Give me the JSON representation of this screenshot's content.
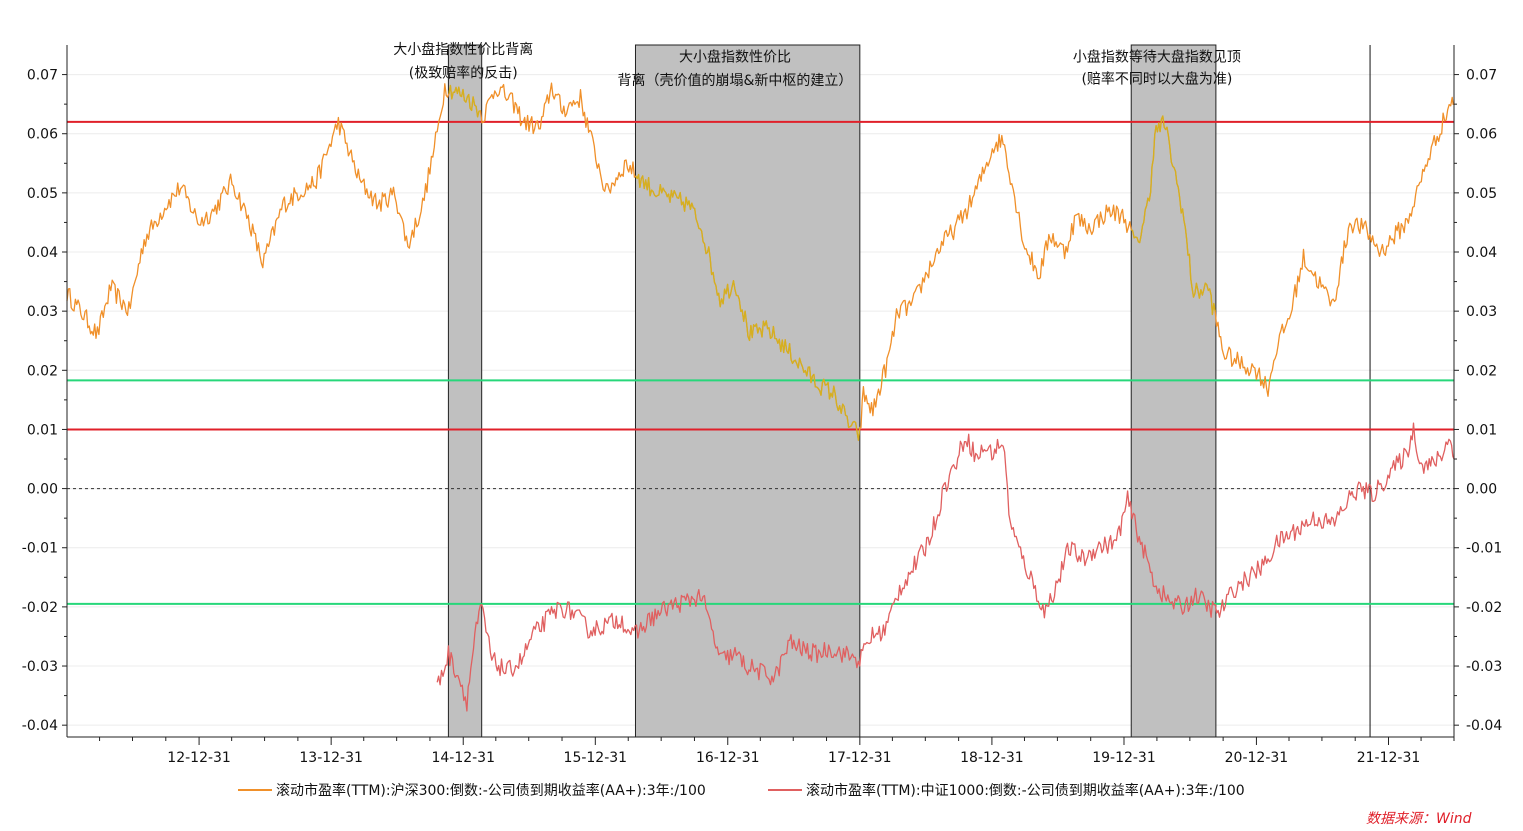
{
  "chart_data": {
    "type": "line",
    "x_tick_labels": [
      "12-12-31",
      "13-12-31",
      "14-12-31",
      "15-12-31",
      "16-12-31",
      "17-12-31",
      "18-12-31",
      "19-12-31",
      "20-12-31",
      "21-12-31"
    ],
    "x_range": [
      "2012-01-01",
      "2022-06-30"
    ],
    "ylim": [
      -0.042,
      0.075
    ],
    "y_ticks": [
      0.07,
      0.06,
      0.05,
      0.04,
      0.03,
      0.02,
      0.01,
      0.0,
      -0.01,
      -0.02,
      -0.03,
      -0.04
    ],
    "y_tick_labels": [
      "0.07",
      "0.06",
      "0.05",
      "0.04",
      "0.03",
      "0.02",
      "0.01",
      "0.00",
      "-0.01",
      "-0.02",
      "-0.03",
      "-0.04"
    ],
    "reference_lines": [
      {
        "value": 0.062,
        "color": "#e0202a"
      },
      {
        "value": 0.0183,
        "color": "#27d77a"
      },
      {
        "value": 0.01,
        "color": "#e0202a"
      },
      {
        "value": 0.0,
        "color": "#333333",
        "style": "dashed"
      },
      {
        "value": -0.0195,
        "color": "#27d77a"
      }
    ],
    "shaded_periods": [
      {
        "start": "2014-11-20",
        "end": "2015-02-20"
      },
      {
        "start": "2016-04-20",
        "end": "2017-12-31"
      },
      {
        "start": "2020-01-20",
        "end": "2020-09-10"
      }
    ],
    "vertical_markers": [
      "2021-11-10"
    ],
    "annotations": [
      {
        "lines": [
          "大小盘指数性价比背离",
          "(极致赔率的反击)"
        ],
        "x": "2014-12-31",
        "y": [
          0.0735,
          0.0695
        ]
      },
      {
        "lines": [
          "大小盘指数性价比",
          "背离（壳价值的崩塌&新中枢的建立）"
        ],
        "x": "2017-01-20",
        "y": [
          0.0722,
          0.0682
        ]
      },
      {
        "lines": [
          "小盘指数等待大盘指数见顶",
          "(赔率不同时以大盘为准)"
        ],
        "x": "2020-03-31",
        "y": [
          0.0722,
          0.0685
        ]
      }
    ],
    "series": [
      {
        "name": "滚动市盈率(TTM):沪深300:倒数:-公司债到期收益率(AA+):3年:/100",
        "color": "#f0902a",
        "shaded_color": "#d4b020",
        "points": [
          [
            "2012-01-01",
            0.033
          ],
          [
            "2012-02-20",
            0.029
          ],
          [
            "2012-03-25",
            0.026
          ],
          [
            "2012-05-01",
            0.034
          ],
          [
            "2012-06-20",
            0.03
          ],
          [
            "2012-08-01",
            0.042
          ],
          [
            "2012-10-01",
            0.048
          ],
          [
            "2012-11-10",
            0.051
          ],
          [
            "2012-12-31",
            0.045
          ],
          [
            "2013-02-10",
            0.047
          ],
          [
            "2013-04-01",
            0.052
          ],
          [
            "2013-05-20",
            0.045
          ],
          [
            "2013-06-25",
            0.038
          ],
          [
            "2013-08-20",
            0.048
          ],
          [
            "2013-10-01",
            0.05
          ],
          [
            "2013-11-20",
            0.052
          ],
          [
            "2014-01-20",
            0.062
          ],
          [
            "2014-03-20",
            0.052
          ],
          [
            "2014-05-10",
            0.048
          ],
          [
            "2014-06-25",
            0.05
          ],
          [
            "2014-07-31",
            0.041
          ],
          [
            "2014-09-10",
            0.048
          ],
          [
            "2014-10-20",
            0.06
          ],
          [
            "2014-11-10",
            0.068
          ],
          [
            "2015-01-15",
            0.066
          ],
          [
            "2015-02-25",
            0.063
          ],
          [
            "2015-04-01",
            0.068
          ],
          [
            "2015-05-20",
            0.065
          ],
          [
            "2015-06-15",
            0.062
          ],
          [
            "2015-08-01",
            0.061
          ],
          [
            "2015-09-01",
            0.068
          ],
          [
            "2015-10-01",
            0.064
          ],
          [
            "2015-11-20",
            0.066
          ],
          [
            "2015-12-20",
            0.059
          ],
          [
            "2016-01-30",
            0.05
          ],
          [
            "2016-03-25",
            0.055
          ],
          [
            "2016-05-10",
            0.052
          ],
          [
            "2016-06-20",
            0.05
          ],
          [
            "2016-08-01",
            0.049
          ],
          [
            "2016-09-15",
            0.048
          ],
          [
            "2016-10-20",
            0.044
          ],
          [
            "2016-12-10",
            0.032
          ],
          [
            "2017-01-20",
            0.035
          ],
          [
            "2017-03-01",
            0.026
          ],
          [
            "2017-04-20",
            0.027
          ],
          [
            "2017-06-20",
            0.023
          ],
          [
            "2017-08-30",
            0.018
          ],
          [
            "2017-10-20",
            0.016
          ],
          [
            "2017-11-30",
            0.011
          ],
          [
            "2017-12-31",
            0.009
          ],
          [
            "2018-01-10",
            0.016
          ],
          [
            "2018-02-05",
            0.013
          ],
          [
            "2018-03-20",
            0.022
          ],
          [
            "2018-04-15",
            0.03
          ],
          [
            "2018-05-25",
            0.031
          ],
          [
            "2018-07-01",
            0.036
          ],
          [
            "2018-08-10",
            0.041
          ],
          [
            "2018-09-20",
            0.044
          ],
          [
            "2018-10-31",
            0.048
          ],
          [
            "2018-12-05",
            0.053
          ],
          [
            "2019-01-05",
            0.058
          ],
          [
            "2019-01-31",
            0.059
          ],
          [
            "2019-02-20",
            0.053
          ],
          [
            "2019-04-01",
            0.041
          ],
          [
            "2019-05-10",
            0.036
          ],
          [
            "2019-06-10",
            0.043
          ],
          [
            "2019-07-20",
            0.04
          ],
          [
            "2019-08-20",
            0.046
          ],
          [
            "2019-09-25",
            0.044
          ],
          [
            "2019-11-20",
            0.047
          ],
          [
            "2019-12-31",
            0.046
          ],
          [
            "2020-02-05",
            0.041
          ],
          [
            "2020-03-10",
            0.049
          ],
          [
            "2020-03-25",
            0.06
          ],
          [
            "2020-04-20",
            0.062
          ],
          [
            "2020-06-10",
            0.047
          ],
          [
            "2020-07-10",
            0.033
          ],
          [
            "2020-08-20",
            0.034
          ],
          [
            "2020-10-01",
            0.023
          ],
          [
            "2020-11-20",
            0.021
          ],
          [
            "2020-12-31",
            0.02
          ],
          [
            "2021-02-01",
            0.017
          ],
          [
            "2021-02-25",
            0.024
          ],
          [
            "2021-04-01",
            0.029
          ],
          [
            "2021-05-10",
            0.039
          ],
          [
            "2021-06-20",
            0.035
          ],
          [
            "2021-07-31",
            0.031
          ],
          [
            "2021-09-15",
            0.045
          ],
          [
            "2021-10-25",
            0.044
          ],
          [
            "2021-12-10",
            0.04
          ],
          [
            "2022-01-20",
            0.043
          ],
          [
            "2022-02-20",
            0.045
          ],
          [
            "2022-03-20",
            0.05
          ],
          [
            "2022-04-20",
            0.056
          ],
          [
            "2022-05-31",
            0.062
          ],
          [
            "2022-06-25",
            0.066
          ],
          [
            "2022-06-30",
            0.065
          ]
        ]
      },
      {
        "name": "滚动市盈率(TTM):中证1000:倒数:-公司债到期收益率(AA+):3年:/100",
        "color": "#e06060",
        "points": [
          [
            "2014-10-20",
            -0.0335
          ],
          [
            "2014-11-05",
            -0.031
          ],
          [
            "2014-11-20",
            -0.028
          ],
          [
            "2014-12-20",
            -0.032
          ],
          [
            "2015-01-10",
            -0.036
          ],
          [
            "2015-02-01",
            -0.025
          ],
          [
            "2015-02-20",
            -0.02
          ],
          [
            "2015-03-20",
            -0.029
          ],
          [
            "2015-05-01",
            -0.031
          ],
          [
            "2015-06-10",
            -0.029
          ],
          [
            "2015-07-10",
            -0.025
          ],
          [
            "2015-08-20",
            -0.022
          ],
          [
            "2015-09-25",
            -0.02
          ],
          [
            "2015-11-01",
            -0.021
          ],
          [
            "2015-12-15",
            -0.024
          ],
          [
            "2016-01-30",
            -0.023
          ],
          [
            "2016-03-10",
            -0.022
          ],
          [
            "2016-04-15",
            -0.025
          ],
          [
            "2016-06-01",
            -0.022
          ],
          [
            "2016-07-20",
            -0.02
          ],
          [
            "2016-09-10",
            -0.019
          ],
          [
            "2016-10-20",
            -0.018
          ],
          [
            "2016-12-10",
            -0.029
          ],
          [
            "2017-01-20",
            -0.028
          ],
          [
            "2017-02-20",
            -0.03
          ],
          [
            "2017-03-31",
            -0.031
          ],
          [
            "2017-05-10",
            -0.032
          ],
          [
            "2017-06-20",
            -0.026
          ],
          [
            "2017-07-20",
            -0.027
          ],
          [
            "2017-08-31",
            -0.028
          ],
          [
            "2017-10-10",
            -0.027
          ],
          [
            "2017-11-20",
            -0.028
          ],
          [
            "2017-12-31",
            -0.029
          ],
          [
            "2018-01-31",
            -0.025
          ],
          [
            "2018-03-10",
            -0.024
          ],
          [
            "2018-04-20",
            -0.017
          ],
          [
            "2018-05-31",
            -0.013
          ],
          [
            "2018-06-30",
            -0.01
          ],
          [
            "2018-07-31",
            -0.005
          ],
          [
            "2018-08-20",
            0.0
          ],
          [
            "2018-09-20",
            0.004
          ],
          [
            "2018-10-20",
            0.009
          ],
          [
            "2018-11-20",
            0.005
          ],
          [
            "2018-12-10",
            0.007
          ],
          [
            "2018-12-31",
            0.006
          ],
          [
            "2019-01-31",
            0.008
          ],
          [
            "2019-02-20",
            -0.006
          ],
          [
            "2019-03-20",
            -0.011
          ],
          [
            "2019-04-30",
            -0.017
          ],
          [
            "2019-05-25",
            -0.021
          ],
          [
            "2019-06-30",
            -0.016
          ],
          [
            "2019-08-01",
            -0.01
          ],
          [
            "2019-09-10",
            -0.012
          ],
          [
            "2019-10-15",
            -0.01
          ],
          [
            "2019-12-10",
            -0.009
          ],
          [
            "2020-01-10",
            -0.002
          ],
          [
            "2020-02-15",
            -0.009
          ],
          [
            "2020-03-25",
            -0.016
          ],
          [
            "2020-04-30",
            -0.019
          ],
          [
            "2020-06-10",
            -0.02
          ],
          [
            "2020-07-20",
            -0.018
          ],
          [
            "2020-08-20",
            -0.02
          ],
          [
            "2020-09-20",
            -0.021
          ],
          [
            "2020-10-30",
            -0.017
          ],
          [
            "2020-12-10",
            -0.015
          ],
          [
            "2021-01-20",
            -0.013
          ],
          [
            "2021-03-01",
            -0.009
          ],
          [
            "2021-04-20",
            -0.007
          ],
          [
            "2021-06-10",
            -0.005
          ],
          [
            "2021-07-31",
            -0.006
          ],
          [
            "2021-09-10",
            -0.002
          ],
          [
            "2021-10-10",
            0.0
          ],
          [
            "2021-11-20",
            -0.001
          ],
          [
            "2022-01-10",
            0.003
          ],
          [
            "2022-02-20",
            0.006
          ],
          [
            "2022-03-10",
            0.01
          ],
          [
            "2022-03-31",
            0.004
          ],
          [
            "2022-04-30",
            0.004
          ],
          [
            "2022-05-31",
            0.006
          ],
          [
            "2022-06-20",
            0.009
          ],
          [
            "2022-06-30",
            0.005
          ]
        ]
      }
    ]
  },
  "legend": [
    {
      "label": "滚动市盈率(TTM):沪深300:倒数:-公司债到期收益率(AA+):3年:/100",
      "color": "#f0902a"
    },
    {
      "label": "滚动市盈率(TTM):中证1000:倒数:-公司债到期收益率(AA+):3年:/100",
      "color": "#e06060"
    }
  ],
  "source_text": "数据来源：Wind"
}
